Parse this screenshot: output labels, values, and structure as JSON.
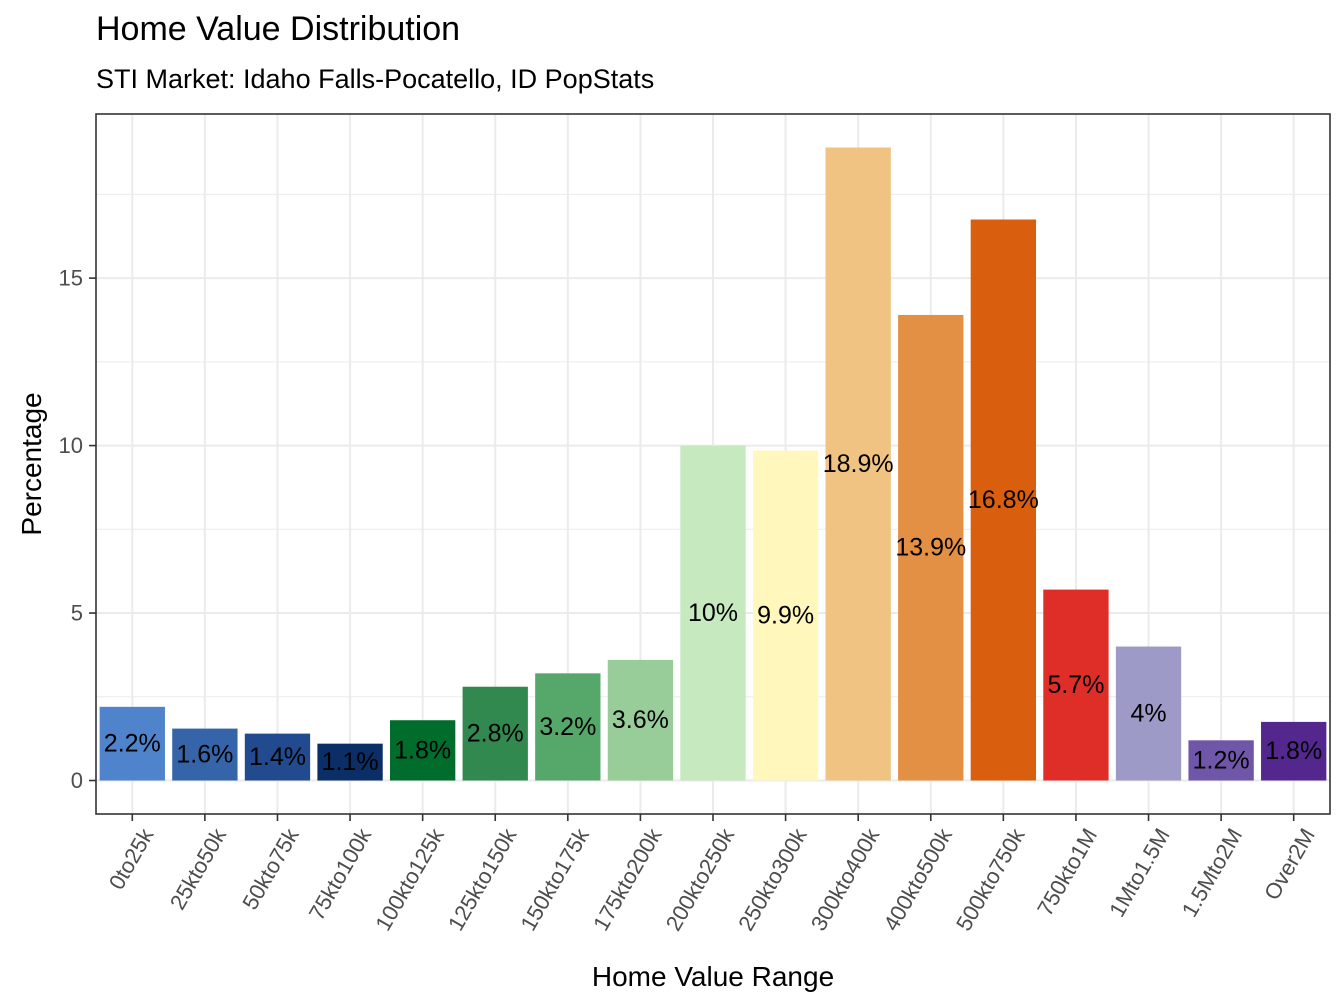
{
  "chart_data": {
    "type": "bar",
    "title": "Home Value Distribution",
    "subtitle": "STI Market: Idaho Falls-Pocatello, ID PopStats",
    "xlabel": "Home Value Range",
    "ylabel": "Percentage",
    "ylim": [
      -1.0,
      19.9
    ],
    "yticks": [
      0,
      5,
      10,
      15
    ],
    "grid": true,
    "categories": [
      "0to25k",
      "25kto50k",
      "50kto75k",
      "75kto100k",
      "100kto125k",
      "125kto150k",
      "150kto175k",
      "175kto200k",
      "200kto250k",
      "250kto300k",
      "300kto400k",
      "400kto500k",
      "500kto750k",
      "750kto1M",
      "1Mto1.5M",
      "1.5Mto2M",
      "Over2M"
    ],
    "values": [
      2.2,
      1.55,
      1.4,
      1.1,
      1.8,
      2.8,
      3.2,
      3.6,
      10.0,
      9.85,
      18.9,
      13.9,
      16.75,
      5.7,
      4.0,
      1.2,
      1.75
    ],
    "labels": [
      "2.2%",
      "1.6%",
      "1.4%",
      "1.1%",
      "1.8%",
      "2.8%",
      "3.2%",
      "3.6%",
      "10%",
      "9.9%",
      "18.9%",
      "13.9%",
      "16.8%",
      "5.7%",
      "4%",
      "1.2%",
      "1.8%"
    ],
    "colors": [
      "#4f83cc",
      "#3565a8",
      "#224a8e",
      "#0b2e66",
      "#006d2c",
      "#31894f",
      "#56a86a",
      "#98cc98",
      "#c7e9c0",
      "#fff7bc",
      "#f0c382",
      "#e49044",
      "#d95f0e",
      "#df2d28",
      "#9e9ac8",
      "#7056a8",
      "#54278f"
    ]
  }
}
